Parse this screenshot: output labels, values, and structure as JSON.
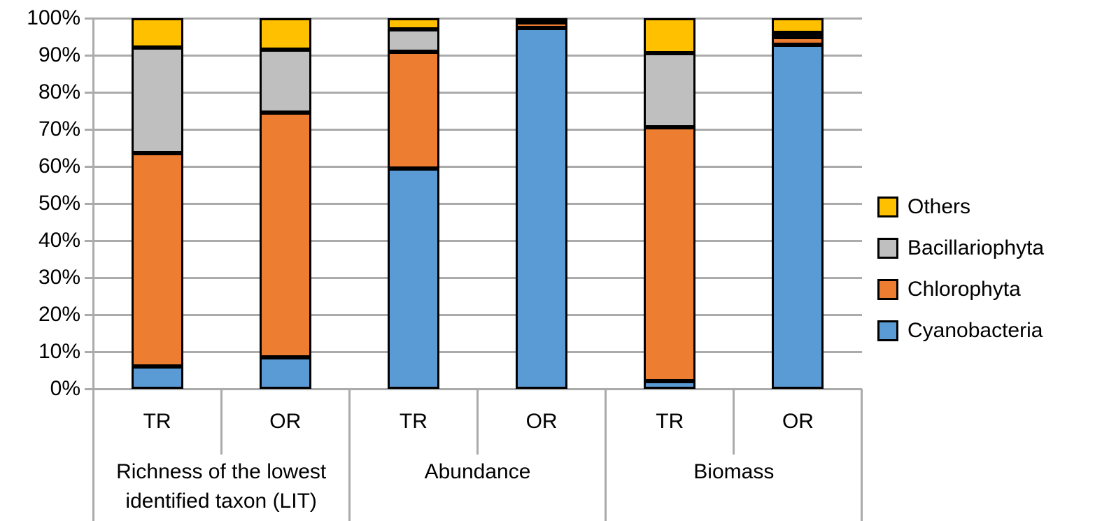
{
  "chart_data": {
    "type": "bar",
    "variant": "100%-stacked-column",
    "title": "",
    "xlabel": "",
    "ylabel": "",
    "ylim": [
      0,
      100
    ],
    "y_ticks": [
      "0%",
      "10%",
      "20%",
      "30%",
      "40%",
      "50%",
      "60%",
      "70%",
      "80%",
      "90%",
      "100%"
    ],
    "grid": true,
    "legend_position": "right",
    "legend": [
      "Others",
      "Bacillariophyta",
      "Chlorophyta",
      "Cyanobacteria"
    ],
    "series_order_bottom_up": [
      "Cyanobacteria",
      "Chlorophyta",
      "Bacillariophyta",
      "Others"
    ],
    "colors": {
      "Cyanobacteria": "#5B9BD5",
      "Chlorophyta": "#ED7D31",
      "Bacillariophyta": "#BFBFBF",
      "Others": "#FFC000",
      "segment_border": "#000000",
      "axis_line": "#ABABAB"
    },
    "groups": [
      {
        "label": "Richness of the lowest identified taxon (LIT)",
        "bars": [
          {
            "label": "TR",
            "values": {
              "Cyanobacteria": 6,
              "Chlorophyta": 57.5,
              "Bacillariophyta": 28.5,
              "Others": 8
            }
          },
          {
            "label": "OR",
            "values": {
              "Cyanobacteria": 8.5,
              "Chlorophyta": 66,
              "Bacillariophyta": 17,
              "Others": 8.5
            }
          }
        ]
      },
      {
        "label": "Abundance",
        "bars": [
          {
            "label": "TR",
            "values": {
              "Cyanobacteria": 59.5,
              "Chlorophyta": 31.5,
              "Bacillariophyta": 6,
              "Others": 3
            }
          },
          {
            "label": "OR",
            "values": {
              "Cyanobacteria": 98,
              "Chlorophyta": 1.5,
              "Bacillariophyta": 0,
              "Others": 0.5
            }
          }
        ]
      },
      {
        "label": "Biomass",
        "bars": [
          {
            "label": "TR",
            "values": {
              "Cyanobacteria": 2,
              "Chlorophyta": 68.5,
              "Bacillariophyta": 20,
              "Others": 9.5
            }
          },
          {
            "label": "OR",
            "values": {
              "Cyanobacteria": 93,
              "Chlorophyta": 2,
              "Bacillariophyta": 1,
              "Others": 4
            }
          }
        ]
      }
    ]
  }
}
